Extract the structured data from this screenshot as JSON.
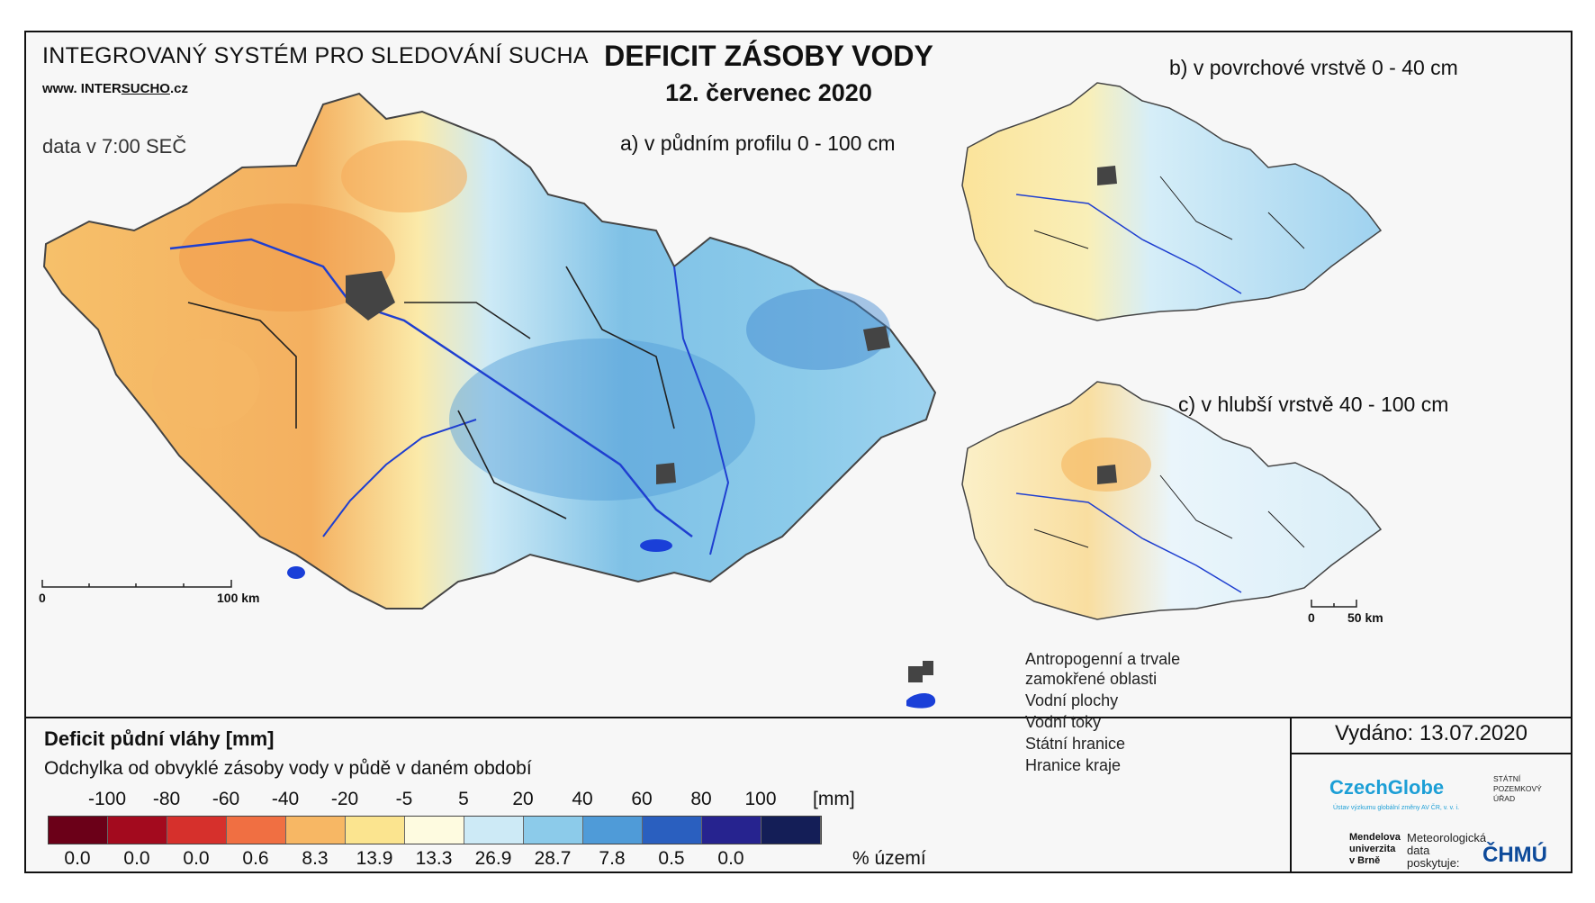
{
  "header": {
    "system_name": "INTEGROVANÝ SYSTÉM PRO SLEDOVÁNÍ SUCHA",
    "web_prefix": "www. INTER",
    "web_underlined": "SUCHO",
    "web_suffix": ".cz",
    "data_time": "data v 7:00 SEČ",
    "title": "DEFICIT ZÁSOBY VODY",
    "date": "12. červenec 2020"
  },
  "maps": {
    "main_label": "a) v půdním profilu 0 - 100 cm",
    "top_right_label": "b) v povrchové vrstvě 0 - 40 cm",
    "bottom_right_label": "c) v hlubší vrstvě 40 - 100 cm",
    "main_scale": {
      "start": "0",
      "end": "100 km"
    },
    "small_scale": {
      "start": "0",
      "end": "50 km"
    }
  },
  "legend": {
    "title": "Deficit půdní vláhy  [mm]",
    "subtitle": "Odchylka od obvyklé zásoby vody v půdě v daném období",
    "ticks": [
      "-100",
      "-80",
      "-60",
      "-40",
      "-20",
      "-5",
      "5",
      "20",
      "40",
      "60",
      "80",
      "100"
    ],
    "unit": "[mm]",
    "colors": [
      "#6b0018",
      "#a30a1e",
      "#d6302c",
      "#f06f42",
      "#f7b764",
      "#fbe48f",
      "#fefbe0",
      "#cdeaf6",
      "#8ccbea",
      "#4f9bd8",
      "#2a5fbf",
      "#26238f",
      "#141e57"
    ],
    "percentages": [
      "0.0",
      "0.0",
      "0.0",
      "0.6",
      "8.3",
      "13.9",
      "13.3",
      "26.9",
      "28.7",
      "7.8",
      "0.5",
      "0.0"
    ],
    "pct_label": "% území"
  },
  "symbols": {
    "anthropogenic_line1": "Antropogenní a trvale",
    "anthropogenic_line2": "zamokřené oblasti",
    "water_bodies": "Vodní plochy",
    "streams": "Vodní toky",
    "state_border": "Státní hranice",
    "region_border": "Hranice kraje"
  },
  "footer": {
    "issued": "Vydáno: 13.07.2020",
    "czechglobe": "CzechGlobe",
    "czechglobe_small": "Ústav výzkumu globální změny AV ČR, v. v. i.",
    "spu_line1": "STÁTNÍ",
    "spu_line2": "POZEMKOVÝ",
    "spu_line3": "ÚŘAD",
    "mendel_line1": "Mendelova",
    "mendel_line2": "univerzita",
    "mendel_line3": "v Brně",
    "meteo_line1": "Meteorologická",
    "meteo_line2": "data",
    "meteo_line3": "poskytuje:",
    "chmu": "ČHMÚ"
  }
}
